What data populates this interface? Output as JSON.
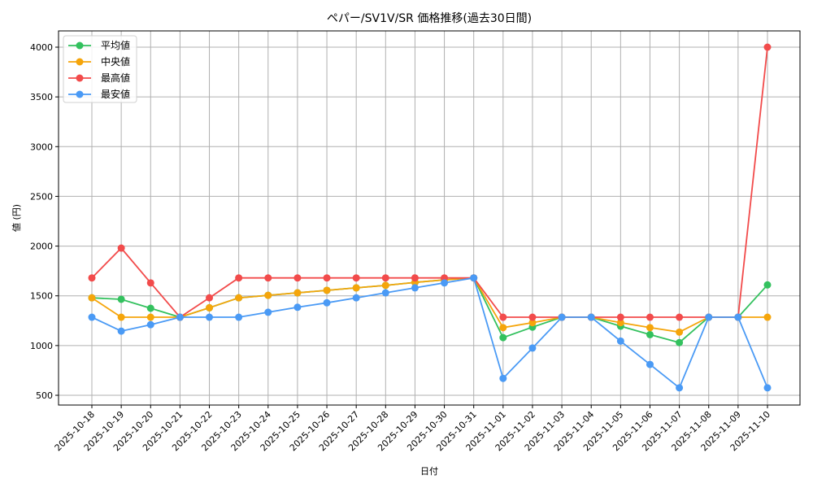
{
  "chart_data": {
    "type": "line",
    "title": "ペパー/SV1V/SR 価格推移(過去30日間)",
    "xlabel": "日付",
    "ylabel": "値 (円)",
    "ylim": [
      400,
      4170
    ],
    "yticks": [
      500,
      1000,
      1500,
      2000,
      2500,
      3000,
      3500,
      4000
    ],
    "grid": true,
    "legend_position": "upper left",
    "x": [
      "2025-10-18",
      "2025-10-19",
      "2025-10-20",
      "2025-10-21",
      "2025-10-22",
      "2025-10-23",
      "2025-10-24",
      "2025-10-25",
      "2025-10-26",
      "2025-10-27",
      "2025-10-28",
      "2025-10-29",
      "2025-10-30",
      "2025-10-31",
      "2025-11-01",
      "2025-11-02",
      "2025-11-03",
      "2025-11-04",
      "2025-11-05",
      "2025-11-06",
      "2025-11-07",
      "2025-11-08",
      "2025-11-09",
      "2025-11-10"
    ],
    "series": [
      {
        "name": "平均値",
        "color": "#33c15e",
        "values": [
          1480,
          1465,
          1375,
          1285,
          1380,
          1480,
          1505,
          1530,
          1555,
          1580,
          1605,
          1635,
          1660,
          1680,
          1080,
          1185,
          1285,
          1285,
          1195,
          1110,
          1030,
          1285,
          1285,
          1610
        ]
      },
      {
        "name": "中央値",
        "color": "#f5a50b",
        "values": [
          1480,
          1285,
          1285,
          1285,
          1380,
          1480,
          1505,
          1530,
          1555,
          1580,
          1605,
          1635,
          1660,
          1680,
          1180,
          1230,
          1285,
          1285,
          1230,
          1180,
          1135,
          1285,
          1285,
          1285
        ]
      },
      {
        "name": "最高値",
        "color": "#f24b4b",
        "values": [
          1680,
          1980,
          1630,
          1285,
          1480,
          1680,
          1680,
          1680,
          1680,
          1680,
          1680,
          1680,
          1680,
          1680,
          1285,
          1285,
          1285,
          1285,
          1285,
          1285,
          1285,
          1285,
          1285,
          4000
        ]
      },
      {
        "name": "最安値",
        "color": "#4a9af5",
        "values": [
          1285,
          1145,
          1210,
          1285,
          1285,
          1285,
          1335,
          1385,
          1430,
          1480,
          1530,
          1580,
          1630,
          1680,
          670,
          975,
          1285,
          1285,
          1045,
          810,
          575,
          1285,
          1285,
          575
        ]
      }
    ]
  }
}
